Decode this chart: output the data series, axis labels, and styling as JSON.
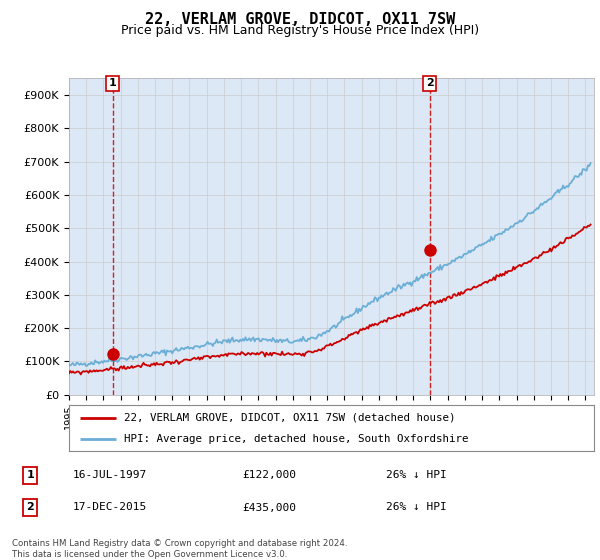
{
  "title": "22, VERLAM GROVE, DIDCOT, OX11 7SW",
  "subtitle": "Price paid vs. HM Land Registry's House Price Index (HPI)",
  "title_fontsize": 11,
  "subtitle_fontsize": 9,
  "hpi_color": "#6baed6",
  "price_color": "#cc0000",
  "marker_color": "#cc0000",
  "dashed_color": "#cc0000",
  "ylim": [
    0,
    950000
  ],
  "yticks": [
    0,
    100000,
    200000,
    300000,
    400000,
    500000,
    600000,
    700000,
    800000,
    900000
  ],
  "ytick_labels": [
    "£0",
    "£100K",
    "£200K",
    "£300K",
    "£400K",
    "£500K",
    "£600K",
    "£700K",
    "£800K",
    "£900K"
  ],
  "sale1_year": 1997.54,
  "sale1_price": 122000,
  "sale2_year": 2015.96,
  "sale2_price": 435000,
  "legend_label1": "22, VERLAM GROVE, DIDCOT, OX11 7SW (detached house)",
  "legend_label2": "HPI: Average price, detached house, South Oxfordshire",
  "annotation1_label": "1",
  "annotation2_label": "2",
  "table1_num": "1",
  "table1_date": "16-JUL-1997",
  "table1_price": "£122,000",
  "table1_hpi": "26% ↓ HPI",
  "table2_num": "2",
  "table2_date": "17-DEC-2015",
  "table2_price": "£435,000",
  "table2_hpi": "26% ↓ HPI",
  "footer": "Contains HM Land Registry data © Crown copyright and database right 2024.\nThis data is licensed under the Open Government Licence v3.0.",
  "grid_color": "#cccccc",
  "bg_color": "#dce8f5"
}
